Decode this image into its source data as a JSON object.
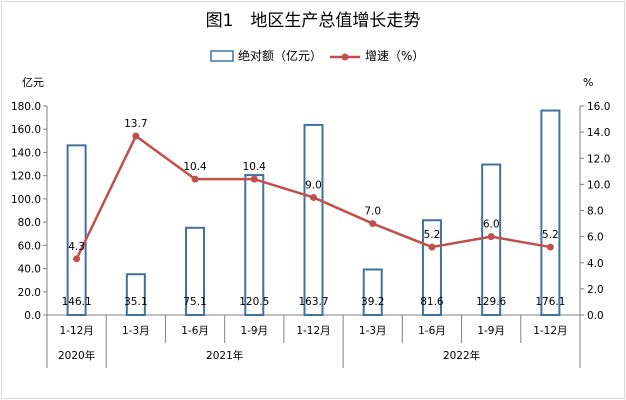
{
  "chart_data": {
    "type": "bar+line",
    "title": "图1　地区生产总值增长走势",
    "legend": [
      "绝对额（亿元）",
      "增速（%）"
    ],
    "left_unit": "亿元",
    "right_unit": "%",
    "categories": [
      "1-12月",
      "1-3月",
      "1-6月",
      "1-9月",
      "1-12月",
      "1-3月",
      "1-6月",
      "1-9月",
      "1-12月"
    ],
    "years": [
      {
        "label": "2020年",
        "from": 0,
        "to": 0
      },
      {
        "label": "2021年",
        "from": 1,
        "to": 4
      },
      {
        "label": "2022年",
        "from": 5,
        "to": 8
      }
    ],
    "series": [
      {
        "name": "绝对额（亿元）",
        "type": "bar",
        "axis": "left",
        "values": [
          146.1,
          35.1,
          75.1,
          120.5,
          163.7,
          39.2,
          81.6,
          129.6,
          176.1
        ],
        "labels": [
          "146.1",
          "35.1",
          "75.1",
          "120.5",
          "163.7",
          "39.2",
          "81.6",
          "129.6",
          "176.1"
        ]
      },
      {
        "name": "增速（%）",
        "type": "line",
        "axis": "right",
        "values": [
          4.3,
          13.7,
          10.4,
          10.4,
          9.0,
          7.0,
          5.2,
          6.0,
          5.2
        ],
        "labels": [
          "4.3",
          "13.7",
          "10.4",
          "10.4",
          "9.0",
          "7.0",
          "5.2",
          "6.0",
          "5.2"
        ]
      }
    ],
    "left_axis": {
      "min": 0,
      "max": 180,
      "step": 20,
      "ticks": [
        "0.0",
        "20.0",
        "40.0",
        "60.0",
        "80.0",
        "100.0",
        "120.0",
        "140.0",
        "160.0",
        "180.0"
      ]
    },
    "right_axis": {
      "min": 0,
      "max": 16,
      "step": 2,
      "ticks": [
        "0.0",
        "2.0",
        "4.0",
        "6.0",
        "8.0",
        "10.0",
        "12.0",
        "14.0",
        "16.0"
      ]
    },
    "grid": false,
    "legend_position": "top",
    "colors": {
      "bar_border": "#41719c",
      "line": "#c0504d",
      "axis": "#808080"
    }
  }
}
